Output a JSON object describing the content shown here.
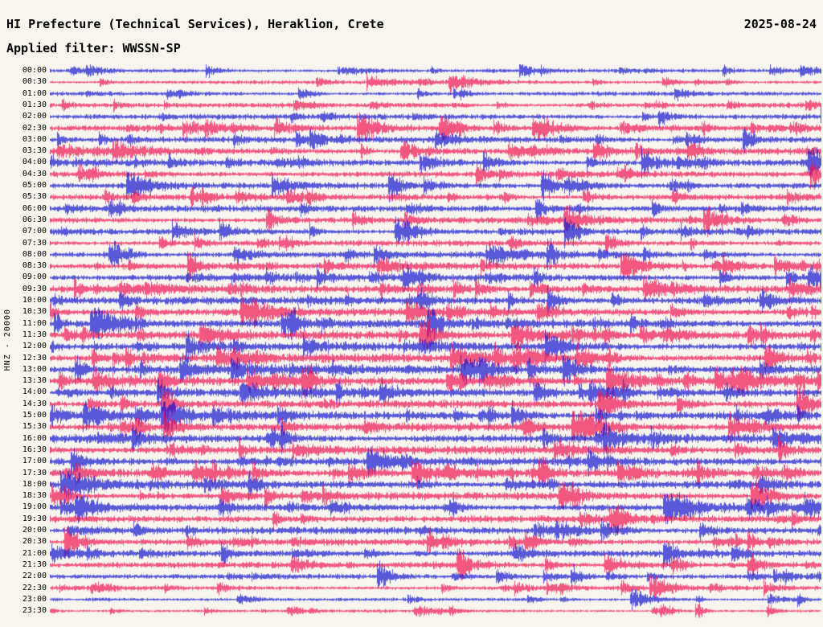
{
  "header": {
    "title": "HI Prefecture (Technical Services), Heraklion, Crete",
    "date": "2025-08-24",
    "filter_label": "Applied filter: WWSSN-SP"
  },
  "axis": {
    "left_label": "HNZ - 20000"
  },
  "chart_data": {
    "type": "seismogram",
    "title": "HI Prefecture (Technical Services), Heraklion, Crete",
    "date": "2025-08-24",
    "applied_filter": "WWSSN-SP",
    "channel": "HNZ",
    "scale": 20000,
    "trace_interval_minutes": 30,
    "row_spacing_px": 14.3,
    "colors": {
      "blue": "#1414cf",
      "red": "#ef1250",
      "background": "#f7f5ee"
    },
    "traces": [
      {
        "label": "00:00",
        "color": "blue",
        "activity": 1.0
      },
      {
        "label": "00:30",
        "color": "red",
        "activity": 1.0
      },
      {
        "label": "01:00",
        "color": "blue",
        "activity": 1.1
      },
      {
        "label": "01:30",
        "color": "red",
        "activity": 1.3
      },
      {
        "label": "02:00",
        "color": "blue",
        "activity": 1.5
      },
      {
        "label": "02:30",
        "color": "red",
        "activity": 1.6
      },
      {
        "label": "03:00",
        "color": "blue",
        "activity": 1.7
      },
      {
        "label": "03:30",
        "color": "red",
        "activity": 1.8
      },
      {
        "label": "04:00",
        "color": "blue",
        "activity": 1.8
      },
      {
        "label": "04:30",
        "color": "red",
        "activity": 1.7
      },
      {
        "label": "05:00",
        "color": "blue",
        "activity": 1.6
      },
      {
        "label": "05:30",
        "color": "red",
        "activity": 1.6
      },
      {
        "label": "06:00",
        "color": "blue",
        "activity": 1.7
      },
      {
        "label": "06:30",
        "color": "red",
        "activity": 1.7
      },
      {
        "label": "07:00",
        "color": "blue",
        "activity": 1.6
      },
      {
        "label": "07:30",
        "color": "red",
        "activity": 1.6
      },
      {
        "label": "08:00",
        "color": "blue",
        "activity": 1.7
      },
      {
        "label": "08:30",
        "color": "red",
        "activity": 1.8
      },
      {
        "label": "09:00",
        "color": "blue",
        "activity": 1.9
      },
      {
        "label": "09:30",
        "color": "red",
        "activity": 2.0
      },
      {
        "label": "10:00",
        "color": "blue",
        "activity": 2.1
      },
      {
        "label": "10:30",
        "color": "red",
        "activity": 2.2
      },
      {
        "label": "11:00",
        "color": "blue",
        "activity": 2.3
      },
      {
        "label": "11:30",
        "color": "red",
        "activity": 2.2
      },
      {
        "label": "12:00",
        "color": "blue",
        "activity": 2.2
      },
      {
        "label": "12:30",
        "color": "red",
        "activity": 2.3
      },
      {
        "label": "13:00",
        "color": "blue",
        "activity": 2.4
      },
      {
        "label": "13:30",
        "color": "red",
        "activity": 2.4
      },
      {
        "label": "14:00",
        "color": "blue",
        "activity": 2.2
      },
      {
        "label": "14:30",
        "color": "red",
        "activity": 2.1
      },
      {
        "label": "15:00",
        "color": "blue",
        "activity": 2.2
      },
      {
        "label": "15:30",
        "color": "red",
        "activity": 2.2
      },
      {
        "label": "16:00",
        "color": "blue",
        "activity": 2.3
      },
      {
        "label": "16:30",
        "color": "red",
        "activity": 2.3
      },
      {
        "label": "17:00",
        "color": "blue",
        "activity": 2.2
      },
      {
        "label": "17:30",
        "color": "red",
        "activity": 2.1
      },
      {
        "label": "18:00",
        "color": "blue",
        "activity": 2.1
      },
      {
        "label": "18:30",
        "color": "red",
        "activity": 2.0
      },
      {
        "label": "19:00",
        "color": "blue",
        "activity": 2.0
      },
      {
        "label": "19:30",
        "color": "red",
        "activity": 1.9
      },
      {
        "label": "20:00",
        "color": "blue",
        "activity": 1.9
      },
      {
        "label": "20:30",
        "color": "red",
        "activity": 1.8
      },
      {
        "label": "21:00",
        "color": "blue",
        "activity": 1.8
      },
      {
        "label": "21:30",
        "color": "red",
        "activity": 1.6
      },
      {
        "label": "22:00",
        "color": "blue",
        "activity": 1.3
      },
      {
        "label": "22:30",
        "color": "red",
        "activity": 1.2
      },
      {
        "label": "23:00",
        "color": "blue",
        "activity": 0.9
      },
      {
        "label": "23:30",
        "color": "red",
        "activity": 0.8
      }
    ]
  }
}
